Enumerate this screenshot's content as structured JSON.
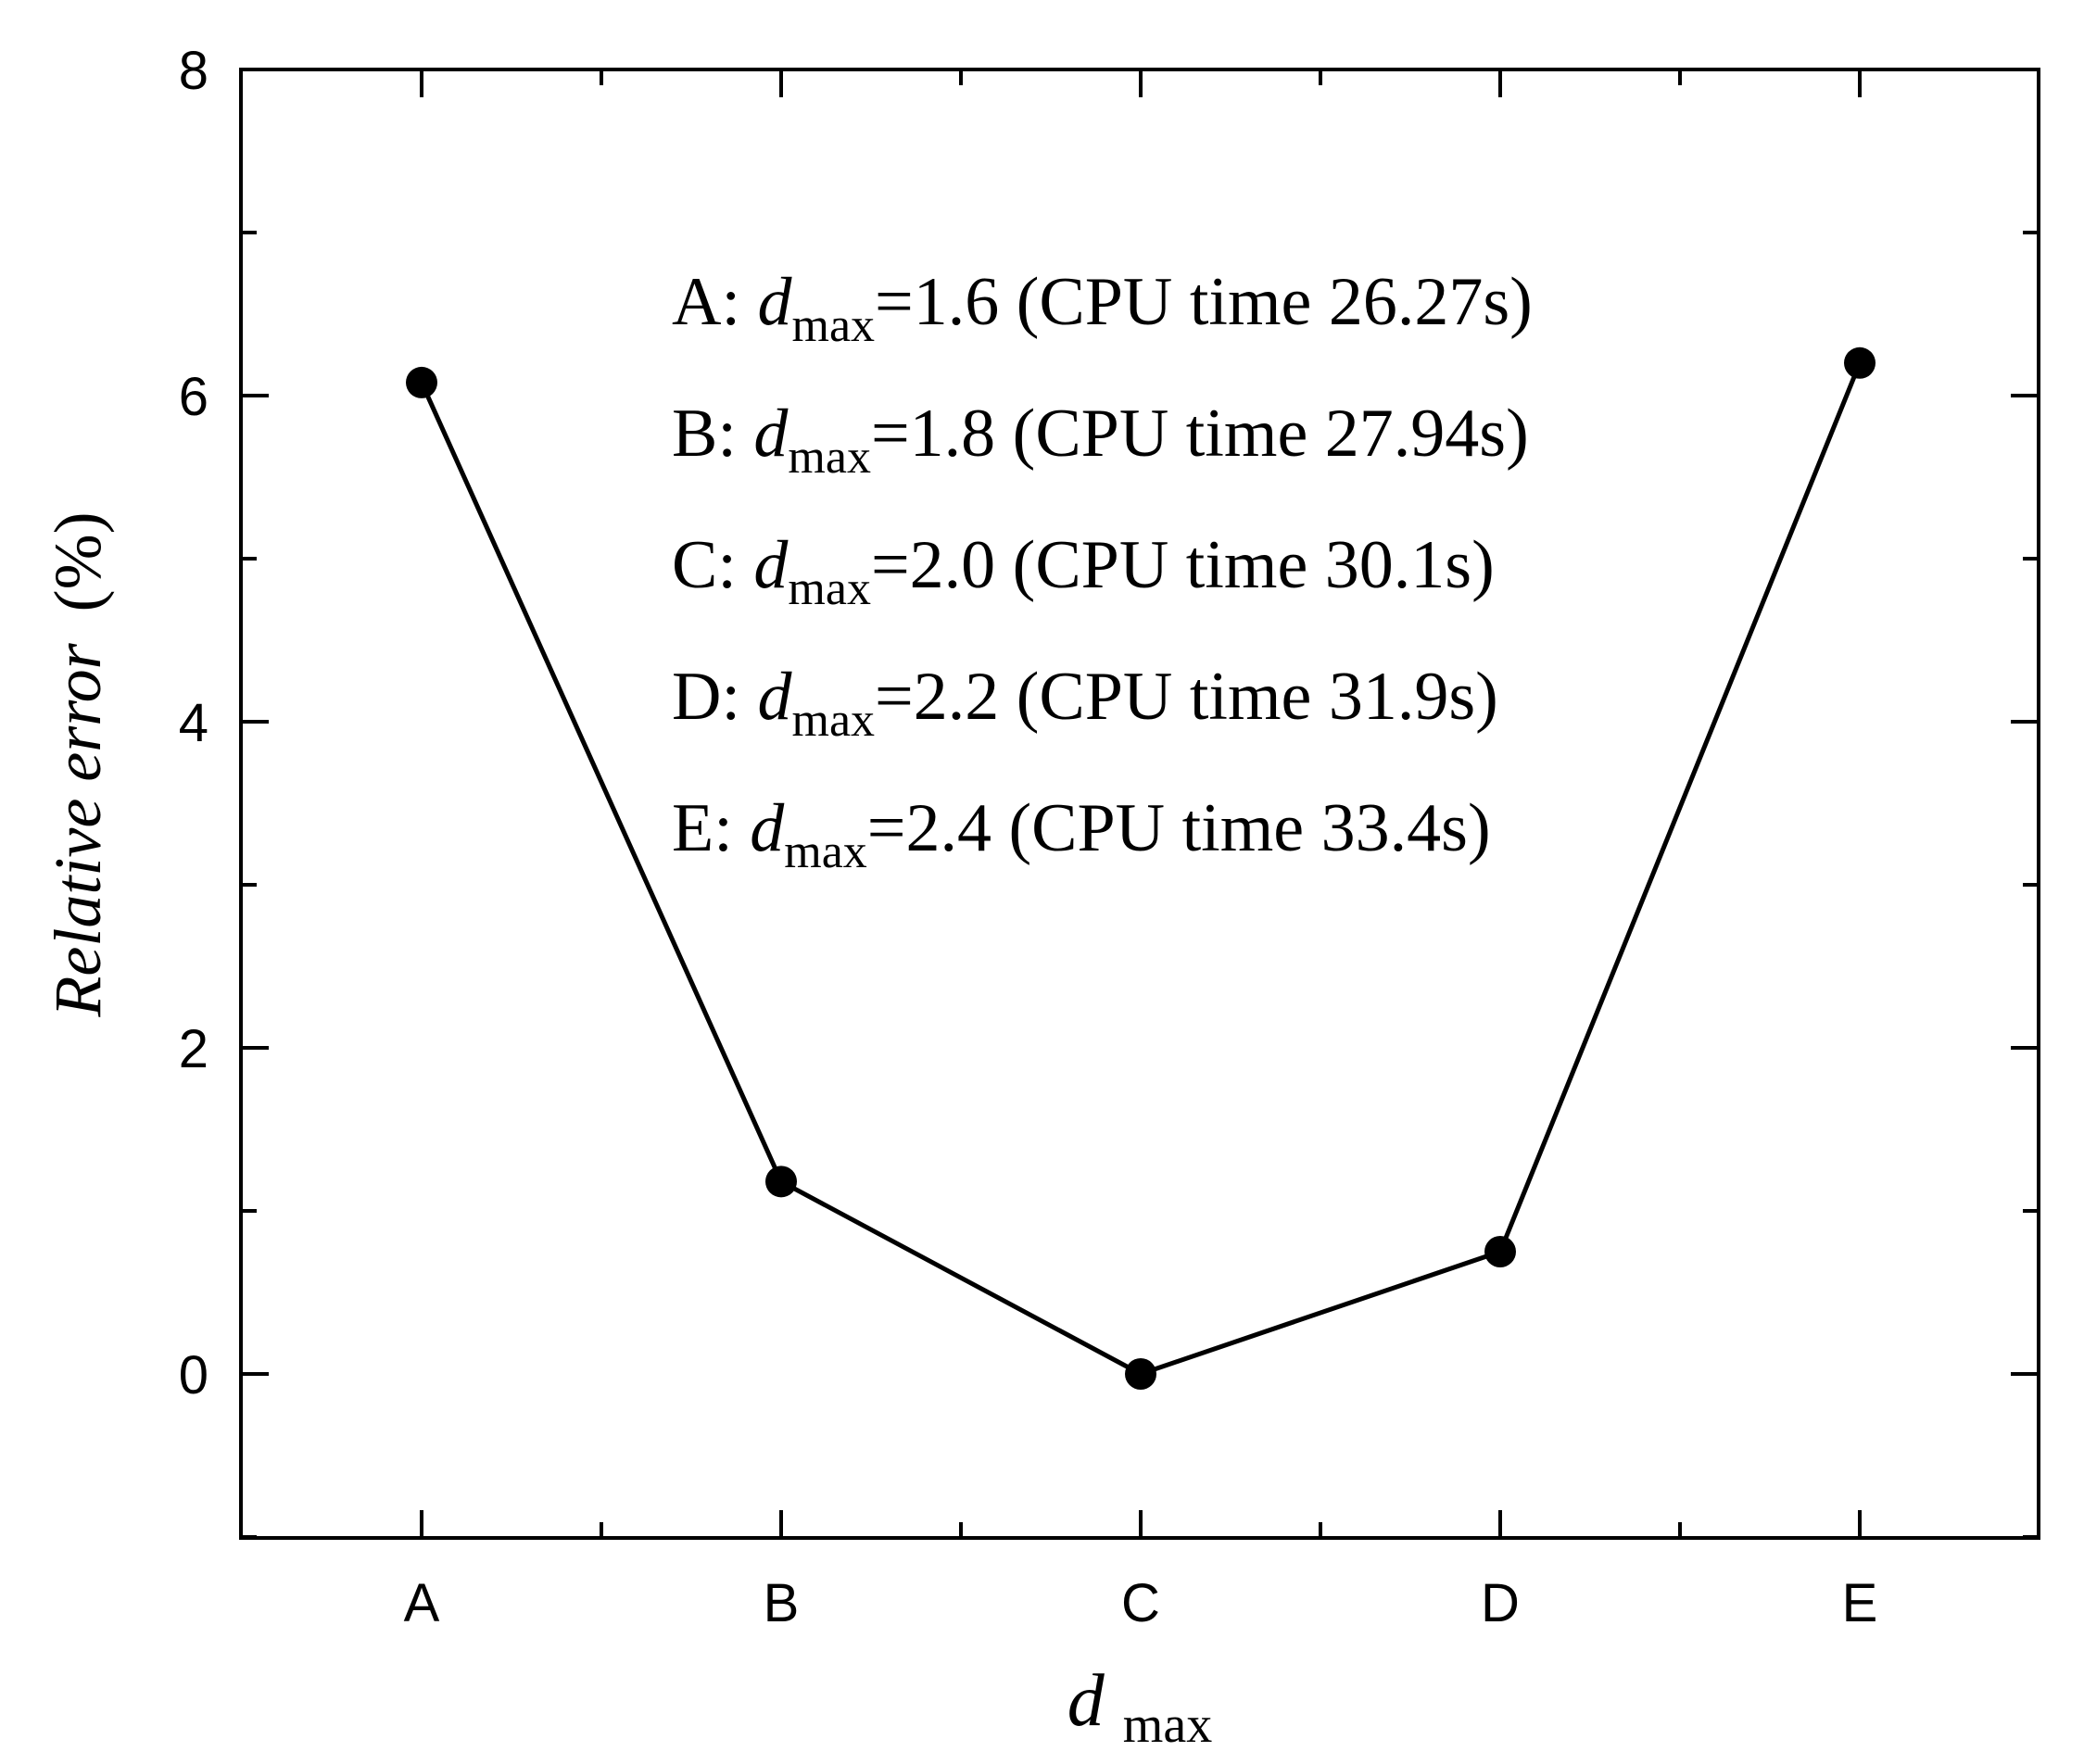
{
  "chart_data": {
    "type": "line",
    "title": "",
    "categories": [
      "A",
      "B",
      "C",
      "D",
      "E"
    ],
    "series": [
      {
        "values": [
          6.08,
          1.18,
          0.0,
          0.75,
          6.2
        ]
      }
    ],
    "ylim": [
      -1,
      8
    ],
    "yticks": [
      0,
      2,
      4,
      6,
      8
    ],
    "ylabel": {
      "main": "Relative error",
      "unit": "(%)"
    },
    "xlabel": {
      "var": "d",
      "sub": "max"
    },
    "grid": false,
    "legend": "none",
    "annotations": [
      {
        "prefix": "A: ",
        "var": "d",
        "sub": "max",
        "rest": "=1.6 (CPU time 26.27s)"
      },
      {
        "prefix": "B: ",
        "var": "d",
        "sub": "max",
        "rest": "=1.8 (CPU time 27.94s)"
      },
      {
        "prefix": "C: ",
        "var": "d",
        "sub": "max",
        "rest": "=2.0 (CPU time 30.1s)"
      },
      {
        "prefix": "D: ",
        "var": "d",
        "sub": "max",
        "rest": "=2.2 (CPU time 31.9s)"
      },
      {
        "prefix": "E: ",
        "var": "d",
        "sub": "max",
        "rest": "=2.4 (CPU time 33.4s)"
      }
    ],
    "colors": {
      "line": "#000000",
      "marker": "#000000",
      "axis": "#000000"
    }
  }
}
